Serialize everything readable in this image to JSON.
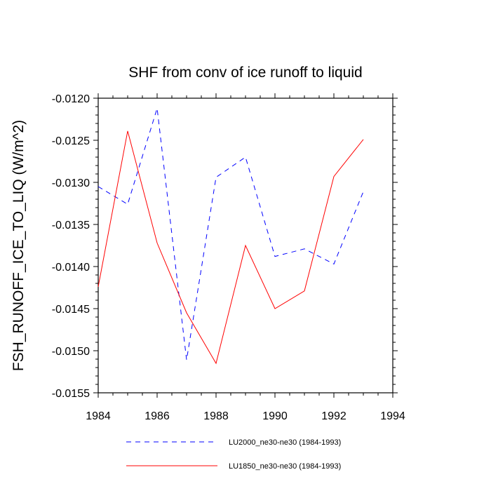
{
  "chart_data": {
    "type": "line",
    "title": "SHF from conv of ice runoff to liquid",
    "xlabel": "",
    "ylabel": "FSH_RUNOFF_ICE_TO_LIQ  (W/m^2)",
    "xlim": [
      1984,
      1994
    ],
    "ylim": [
      -0.0155,
      -0.012
    ],
    "xticks": [
      1984,
      1986,
      1988,
      1990,
      1992,
      1994
    ],
    "xtick_labels": [
      "1984",
      "1986",
      "1988",
      "1990",
      "1992",
      "1994"
    ],
    "yticks": [
      -0.012,
      -0.0125,
      -0.013,
      -0.0135,
      -0.014,
      -0.0145,
      -0.015,
      -0.0155
    ],
    "ytick_labels": [
      "-0.0120",
      "-0.0125",
      "-0.0130",
      "-0.0135",
      "-0.0140",
      "-0.0145",
      "-0.0150",
      "-0.0155"
    ],
    "x": [
      1984,
      1985,
      1986,
      1987,
      1988,
      1989,
      1990,
      1991,
      1992,
      1993
    ],
    "grid": false,
    "legend_position": "bottom",
    "series": [
      {
        "name": "LU2000_ne30-ne30 (1984-1993)",
        "color": "#0000ff",
        "style": "dashed",
        "values": [
          -0.01305,
          -0.01326,
          -0.01212,
          -0.01511,
          -0.01294,
          -0.0127,
          -0.01388,
          -0.01379,
          -0.01397,
          -0.01311
        ]
      },
      {
        "name": "LU1850_ne30-ne30 (1984-1993)",
        "color": "#ff0000",
        "style": "solid",
        "values": [
          -0.01424,
          -0.01239,
          -0.01372,
          -0.01455,
          -0.01515,
          -0.01375,
          -0.0145,
          -0.01429,
          -0.01293,
          -0.01249
        ]
      }
    ]
  }
}
